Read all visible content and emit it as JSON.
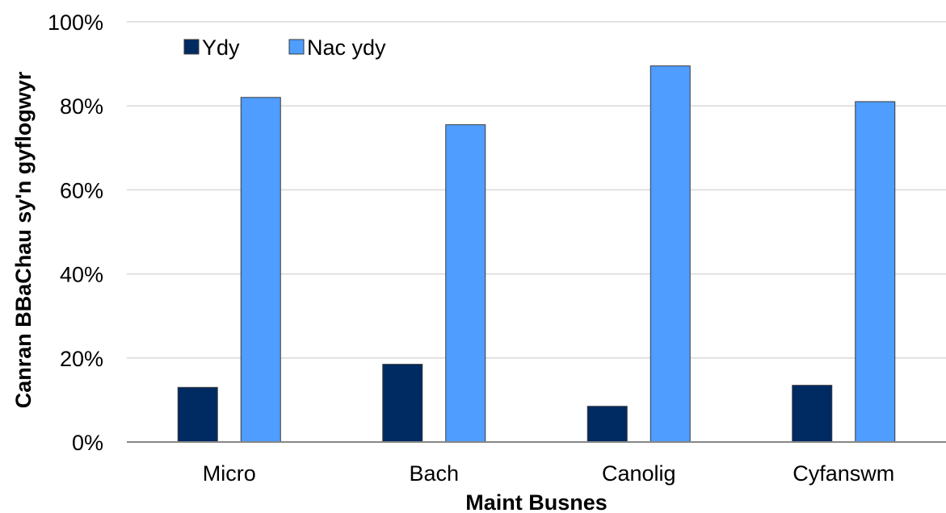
{
  "chart_data": {
    "type": "bar",
    "title": "",
    "xlabel": "Maint Busnes",
    "ylabel": "Canran BBaChau sy'n gyflogwyr",
    "categories": [
      "Micro",
      "Bach",
      "Canolig",
      "Cyfanswm"
    ],
    "series": [
      {
        "name": "Ydy",
        "values": [
          13,
          18.5,
          8.5,
          13.5
        ],
        "color": "#002a62"
      },
      {
        "name": "Nac ydy",
        "values": [
          82,
          75.5,
          89.5,
          81
        ],
        "color": "#4f9dff"
      }
    ],
    "ylim": [
      0,
      100
    ],
    "yticks": [
      0,
      20,
      40,
      60,
      80,
      100
    ],
    "ytick_labels": [
      "0%",
      "20%",
      "40%",
      "60%",
      "80%",
      "100%"
    ],
    "grid": true,
    "legend_position": "top-left"
  }
}
